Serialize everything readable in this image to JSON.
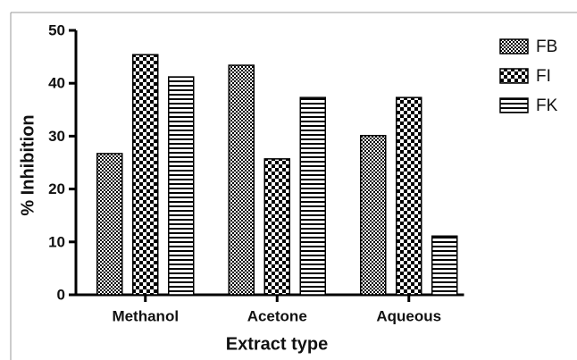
{
  "chart_data": {
    "type": "bar",
    "x_label": "Extract type",
    "y_label": "% Inhibition",
    "categories": [
      "Methanol",
      "Acetone",
      "Aqueous"
    ],
    "series": [
      {
        "name": "FB",
        "color": "#000000",
        "pattern": "fine-check",
        "values": [
          26.7,
          43.4,
          30.1
        ]
      },
      {
        "name": "FI",
        "color": "#000000",
        "pattern": "check",
        "values": [
          45.4,
          25.7,
          37.3
        ]
      },
      {
        "name": "FK",
        "color": "#000000",
        "pattern": "stripes",
        "values": [
          41.2,
          37.3,
          11.1
        ]
      }
    ],
    "ylim": [
      0,
      50
    ],
    "yticks": [
      0,
      10,
      20,
      30,
      40,
      50
    ],
    "grid": false,
    "legend": "right"
  }
}
